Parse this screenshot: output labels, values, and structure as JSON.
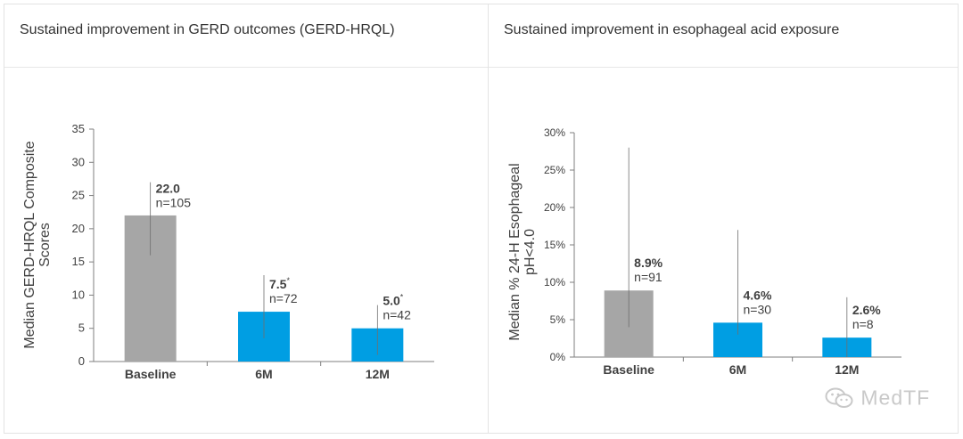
{
  "panels": [
    {
      "title": "Sustained improvement in GERD outcomes (GERD-HRQL)",
      "chart_data": {
        "type": "bar",
        "categories": [
          "Baseline",
          "6M",
          "12M"
        ],
        "values": [
          22.0,
          7.5,
          5.0
        ],
        "error_low": [
          16.0,
          3.5,
          1.0
        ],
        "error_high": [
          27.0,
          13.0,
          8.5
        ],
        "value_labels": [
          "22.0",
          "7.5",
          "5.0"
        ],
        "value_markers": [
          "",
          "*",
          "*"
        ],
        "n_labels": [
          "n=105",
          "n=72",
          "n=42"
        ],
        "bar_colors": [
          "#a6a6a6",
          "#009ee3",
          "#009ee3"
        ],
        "ylabel_lines": [
          "Median GERD-HRQL Composite",
          "Scores"
        ],
        "xlabel": "",
        "ylim": [
          0,
          35
        ],
        "yticks": [
          0,
          5,
          10,
          15,
          20,
          25,
          30,
          35
        ],
        "ytick_labels": [
          "0",
          "5",
          "10",
          "15",
          "20",
          "25",
          "30",
          "35"
        ],
        "grid": false,
        "legend": "none"
      }
    },
    {
      "title": "Sustained improvement in esophageal acid exposure",
      "chart_data": {
        "type": "bar",
        "categories": [
          "Baseline",
          "6M",
          "12M"
        ],
        "values": [
          8.9,
          4.6,
          2.6
        ],
        "error_low": [
          4.0,
          3.0,
          0.0
        ],
        "error_high": [
          28.0,
          17.0,
          8.0
        ],
        "value_labels": [
          "8.9%",
          "4.6%",
          "2.6%"
        ],
        "value_markers": [
          "",
          "",
          ""
        ],
        "n_labels": [
          "n=91",
          "n=30",
          "n=8"
        ],
        "bar_colors": [
          "#a6a6a6",
          "#009ee3",
          "#009ee3"
        ],
        "ylabel_lines": [
          "Median % 24-H Esophageal",
          "pH<4.0"
        ],
        "xlabel": "",
        "ylim": [
          0,
          30
        ],
        "yticks": [
          0,
          5,
          10,
          15,
          20,
          25,
          30
        ],
        "ytick_labels": [
          "0%",
          "5%",
          "10%",
          "15%",
          "20%",
          "25%",
          "30%"
        ],
        "grid": false,
        "legend": "none"
      }
    }
  ],
  "watermark": {
    "text": "MedTF",
    "icon": "wechat-icon"
  },
  "colors": {
    "axis": "#7f7f7f",
    "text": "#404040",
    "title": "#333333"
  }
}
